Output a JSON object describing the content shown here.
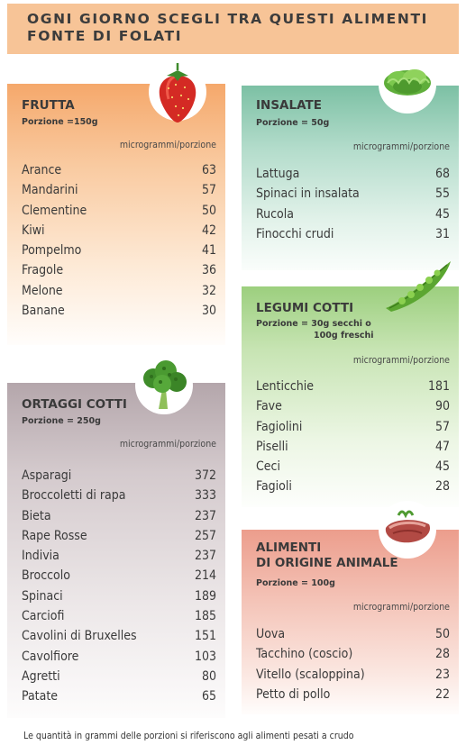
{
  "header": {
    "line1": "OGNI GIORNO SCEGLI TRA QUESTI ALIMENTI",
    "line2": "FONTE DI FOLATI"
  },
  "frutta": {
    "title": "FRUTTA",
    "portion": "Porzione =150g",
    "unit": "microgrammi/porzione",
    "icon": "strawberry-icon",
    "items": [
      {
        "name": "Arance",
        "value": "63"
      },
      {
        "name": "Mandarini",
        "value": "57"
      },
      {
        "name": "Clementine",
        "value": "50"
      },
      {
        "name": "Kiwi",
        "value": "42"
      },
      {
        "name": "Pompelmo",
        "value": "41"
      },
      {
        "name": "Fragole",
        "value": "36"
      },
      {
        "name": "Melone",
        "value": "32"
      },
      {
        "name": "Banane",
        "value": "30"
      }
    ]
  },
  "insalate": {
    "title": "INSALATE",
    "portion": "Porzione = 50g",
    "unit": "microgrammi/porzione",
    "icon": "lettuce-icon",
    "items": [
      {
        "name": "Lattuga",
        "value": "68"
      },
      {
        "name": "Spinaci in insalata",
        "value": "55"
      },
      {
        "name": "Rucola",
        "value": "45"
      },
      {
        "name": "Finocchi crudi",
        "value": "31"
      }
    ]
  },
  "legumi": {
    "title": "LEGUMI COTTI",
    "portion_line1": "Porzione  = 30g secchi o",
    "portion_line2": "100g freschi",
    "unit": "microgrammi/porzione",
    "icon": "pea-pod-icon",
    "items": [
      {
        "name": "Lenticchie",
        "value": "181"
      },
      {
        "name": "Fave",
        "value": "90"
      },
      {
        "name": "Fagiolini",
        "value": "57"
      },
      {
        "name": "Piselli",
        "value": "47"
      },
      {
        "name": "Ceci",
        "value": "45"
      },
      {
        "name": "Fagioli",
        "value": "28"
      }
    ]
  },
  "ortaggi": {
    "title": "ORTAGGI COTTI",
    "portion": "Porzione = 250g",
    "unit": "microgrammi/porzione",
    "icon": "broccoli-icon",
    "items": [
      {
        "name": "Asparagi",
        "value": "372"
      },
      {
        "name": "Broccoletti di rapa",
        "value": "333"
      },
      {
        "name": "Bieta",
        "value": "237"
      },
      {
        "name": "Rape Rosse",
        "value": "257"
      },
      {
        "name": "Indivia",
        "value": "237"
      },
      {
        "name": "Broccolo",
        "value": "214"
      },
      {
        "name": "Spinaci",
        "value": "189"
      },
      {
        "name": "Carciofi",
        "value": "185"
      },
      {
        "name": "Cavolini di Bruxelles",
        "value": "151"
      },
      {
        "name": "Cavolfiore",
        "value": "103"
      },
      {
        "name": "Agretti",
        "value": "80"
      },
      {
        "name": "Patate",
        "value": "65"
      }
    ]
  },
  "animale": {
    "title_line1": "ALIMENTI",
    "title_line2": "DI ORIGINE ANIMALE",
    "portion": "Porzione = 100g",
    "unit": "microgrammi/porzione",
    "icon": "meat-icon",
    "items": [
      {
        "name": "Uova",
        "value": "50"
      },
      {
        "name": "Tacchino (coscio)",
        "value": "28"
      },
      {
        "name": "Vitello (scaloppina)",
        "value": "23"
      },
      {
        "name": "Petto di pollo",
        "value": "22"
      }
    ]
  },
  "footnote": "Le quantità in grammi delle porzioni si riferiscono agli alimenti pesati a crudo"
}
